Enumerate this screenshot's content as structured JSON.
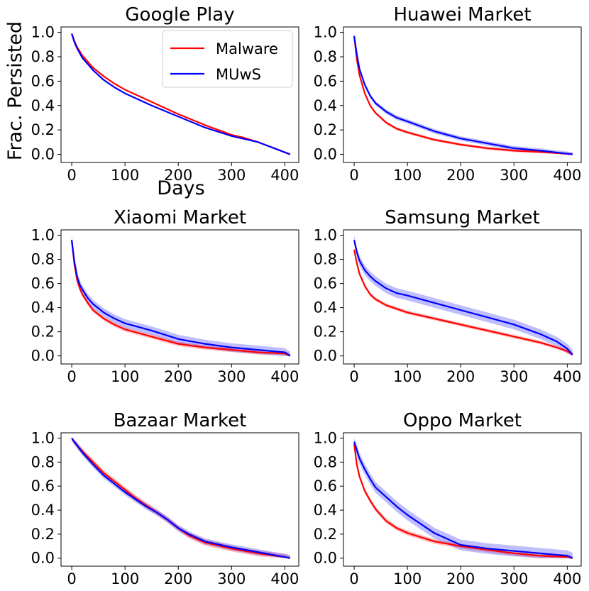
{
  "figure": {
    "ylabel": "Frac. Persisted",
    "xlabel": "Days"
  },
  "legend": {
    "entries": [
      {
        "label": "Malware",
        "color": "#ff0000"
      },
      {
        "label": "MUwS",
        "color": "#0000ff"
      }
    ],
    "placement": "top-right of first panel"
  },
  "colors": {
    "malware": "#ff0000",
    "muws": "#0000ff"
  },
  "chart_data": [
    {
      "type": "line",
      "title": "Google Play",
      "xlim": [
        0,
        415
      ],
      "ylim": [
        0.0,
        1.0
      ],
      "xticks": [
        0,
        100,
        200,
        300,
        400
      ],
      "xtick_labels": [
        "0",
        "100",
        "200",
        "300",
        "400"
      ],
      "yticks": [
        0.0,
        0.2,
        0.4,
        0.6,
        0.8,
        1.0
      ],
      "ytick_labels": [
        "0.0",
        "0.2",
        "0.4",
        "0.6",
        "0.8",
        "1.0"
      ],
      "series": [
        {
          "name": "Malware",
          "x": [
            0,
            5,
            10,
            20,
            30,
            40,
            60,
            80,
            100,
            150,
            200,
            250,
            300,
            320,
            350,
            380,
            410
          ],
          "y": [
            0.99,
            0.93,
            0.88,
            0.81,
            0.76,
            0.71,
            0.64,
            0.58,
            0.53,
            0.43,
            0.33,
            0.24,
            0.16,
            0.14,
            0.1,
            0.05,
            0.0
          ],
          "band": 0.005
        },
        {
          "name": "MUwS",
          "x": [
            0,
            5,
            10,
            20,
            30,
            40,
            60,
            80,
            100,
            150,
            200,
            250,
            300,
            320,
            350,
            380,
            410
          ],
          "y": [
            0.99,
            0.92,
            0.87,
            0.79,
            0.74,
            0.69,
            0.61,
            0.55,
            0.5,
            0.4,
            0.31,
            0.22,
            0.15,
            0.13,
            0.1,
            0.05,
            0.0
          ],
          "band": 0.005
        }
      ]
    },
    {
      "type": "line",
      "title": "Huawei Market",
      "xlim": [
        0,
        415
      ],
      "ylim": [
        0.0,
        1.0
      ],
      "xticks": [
        0,
        100,
        200,
        300,
        400
      ],
      "xtick_labels": [
        "0",
        "100",
        "200",
        "300",
        "400"
      ],
      "yticks": [
        0.0,
        0.2,
        0.4,
        0.6,
        0.8,
        1.0
      ],
      "ytick_labels": [
        "0.0",
        "0.2",
        "0.4",
        "0.6",
        "0.8",
        "1.0"
      ],
      "series": [
        {
          "name": "Malware",
          "x": [
            0,
            5,
            10,
            20,
            30,
            40,
            60,
            80,
            100,
            150,
            200,
            250,
            300,
            350,
            410
          ],
          "y": [
            0.97,
            0.78,
            0.65,
            0.5,
            0.4,
            0.34,
            0.26,
            0.21,
            0.18,
            0.12,
            0.08,
            0.05,
            0.03,
            0.02,
            0.0
          ],
          "band": 0.012
        },
        {
          "name": "MUwS",
          "x": [
            0,
            5,
            10,
            20,
            30,
            40,
            60,
            80,
            100,
            150,
            200,
            250,
            300,
            350,
            410
          ],
          "y": [
            0.97,
            0.82,
            0.7,
            0.57,
            0.48,
            0.42,
            0.35,
            0.3,
            0.27,
            0.19,
            0.13,
            0.09,
            0.05,
            0.03,
            0.0
          ],
          "band": 0.018
        }
      ]
    },
    {
      "type": "line",
      "title": "Xiaomi Market",
      "xlim": [
        0,
        415
      ],
      "ylim": [
        0.0,
        1.0
      ],
      "xticks": [
        0,
        100,
        200,
        300,
        400
      ],
      "xtick_labels": [
        "0",
        "100",
        "200",
        "300",
        "400"
      ],
      "yticks": [
        0.0,
        0.2,
        0.4,
        0.6,
        0.8,
        1.0
      ],
      "ytick_labels": [
        "0.0",
        "0.2",
        "0.4",
        "0.6",
        "0.8",
        "1.0"
      ],
      "series": [
        {
          "name": "Malware",
          "x": [
            0,
            5,
            10,
            15,
            20,
            30,
            40,
            60,
            80,
            100,
            150,
            200,
            250,
            300,
            350,
            400,
            410
          ],
          "y": [
            0.96,
            0.76,
            0.63,
            0.56,
            0.51,
            0.44,
            0.38,
            0.31,
            0.26,
            0.22,
            0.16,
            0.1,
            0.07,
            0.05,
            0.03,
            0.02,
            0.0
          ],
          "band": 0.018
        },
        {
          "name": "MUwS",
          "x": [
            0,
            5,
            10,
            15,
            20,
            30,
            40,
            60,
            80,
            100,
            150,
            200,
            250,
            300,
            350,
            400,
            410
          ],
          "y": [
            0.96,
            0.78,
            0.66,
            0.59,
            0.55,
            0.48,
            0.43,
            0.36,
            0.31,
            0.27,
            0.21,
            0.14,
            0.1,
            0.07,
            0.05,
            0.03,
            0.0
          ],
          "band": 0.035
        }
      ]
    },
    {
      "type": "line",
      "title": "Samsung Market",
      "xlim": [
        0,
        415
      ],
      "ylim": [
        0.0,
        1.0
      ],
      "xticks": [
        0,
        100,
        200,
        300,
        400
      ],
      "xtick_labels": [
        "0",
        "100",
        "200",
        "300",
        "400"
      ],
      "yticks": [
        0.0,
        0.2,
        0.4,
        0.6,
        0.8,
        1.0
      ],
      "ytick_labels": [
        "0.0",
        "0.2",
        "0.4",
        "0.6",
        "0.8",
        "1.0"
      ],
      "series": [
        {
          "name": "Malware",
          "x": [
            0,
            5,
            10,
            20,
            30,
            40,
            60,
            80,
            100,
            150,
            200,
            250,
            300,
            350,
            380,
            400,
            410
          ],
          "y": [
            0.88,
            0.77,
            0.68,
            0.58,
            0.51,
            0.47,
            0.42,
            0.39,
            0.36,
            0.31,
            0.26,
            0.21,
            0.16,
            0.11,
            0.07,
            0.04,
            0.01
          ],
          "band": 0.015
        },
        {
          "name": "MUwS",
          "x": [
            0,
            5,
            10,
            20,
            30,
            40,
            60,
            80,
            100,
            150,
            200,
            250,
            300,
            350,
            380,
            400,
            410
          ],
          "y": [
            0.96,
            0.86,
            0.79,
            0.71,
            0.66,
            0.62,
            0.56,
            0.52,
            0.5,
            0.44,
            0.38,
            0.32,
            0.26,
            0.18,
            0.12,
            0.06,
            0.01
          ],
          "band": 0.04
        }
      ]
    },
    {
      "type": "line",
      "title": "Bazaar Market",
      "xlim": [
        0,
        415
      ],
      "ylim": [
        0.0,
        1.0
      ],
      "xticks": [
        0,
        100,
        200,
        300,
        400
      ],
      "xtick_labels": [
        "0",
        "100",
        "200",
        "300",
        "400"
      ],
      "yticks": [
        0.0,
        0.2,
        0.4,
        0.6,
        0.8,
        1.0
      ],
      "ytick_labels": [
        "0.0",
        "0.2",
        "0.4",
        "0.6",
        "0.8",
        "1.0"
      ],
      "series": [
        {
          "name": "Malware",
          "x": [
            0,
            10,
            20,
            40,
            60,
            80,
            100,
            120,
            140,
            160,
            180,
            200,
            220,
            250,
            300,
            350,
            400,
            410
          ],
          "y": [
            1.0,
            0.94,
            0.89,
            0.8,
            0.71,
            0.64,
            0.57,
            0.5,
            0.44,
            0.38,
            0.32,
            0.25,
            0.19,
            0.13,
            0.08,
            0.04,
            0.01,
            0.0
          ],
          "band": 0.025
        },
        {
          "name": "MUwS",
          "x": [
            0,
            10,
            20,
            40,
            60,
            80,
            100,
            120,
            140,
            160,
            180,
            200,
            220,
            250,
            300,
            350,
            400,
            410
          ],
          "y": [
            1.0,
            0.94,
            0.88,
            0.78,
            0.69,
            0.62,
            0.55,
            0.49,
            0.43,
            0.38,
            0.32,
            0.25,
            0.2,
            0.14,
            0.09,
            0.05,
            0.01,
            0.0
          ],
          "band": 0.025
        }
      ]
    },
    {
      "type": "line",
      "title": "Oppo Market",
      "xlim": [
        0,
        415
      ],
      "ylim": [
        0.0,
        1.0
      ],
      "xticks": [
        0,
        100,
        200,
        300,
        400
      ],
      "xtick_labels": [
        "0",
        "100",
        "200",
        "300",
        "400"
      ],
      "yticks": [
        0.0,
        0.2,
        0.4,
        0.6,
        0.8,
        1.0
      ],
      "ytick_labels": [
        "0.0",
        "0.2",
        "0.4",
        "0.6",
        "0.8",
        "1.0"
      ],
      "series": [
        {
          "name": "Malware",
          "x": [
            0,
            5,
            10,
            20,
            30,
            40,
            60,
            80,
            100,
            150,
            200,
            250,
            300,
            350,
            400,
            410
          ],
          "y": [
            0.95,
            0.78,
            0.68,
            0.56,
            0.48,
            0.41,
            0.31,
            0.25,
            0.21,
            0.14,
            0.1,
            0.07,
            0.04,
            0.02,
            0.01,
            0.0
          ],
          "band": 0.02
        },
        {
          "name": "MUwS",
          "x": [
            0,
            5,
            10,
            20,
            30,
            40,
            60,
            80,
            100,
            150,
            200,
            250,
            300,
            350,
            400,
            410
          ],
          "y": [
            0.97,
            0.9,
            0.83,
            0.74,
            0.66,
            0.59,
            0.51,
            0.43,
            0.36,
            0.21,
            0.11,
            0.08,
            0.06,
            0.04,
            0.02,
            0.0
          ],
          "band": 0.045
        }
      ]
    }
  ]
}
